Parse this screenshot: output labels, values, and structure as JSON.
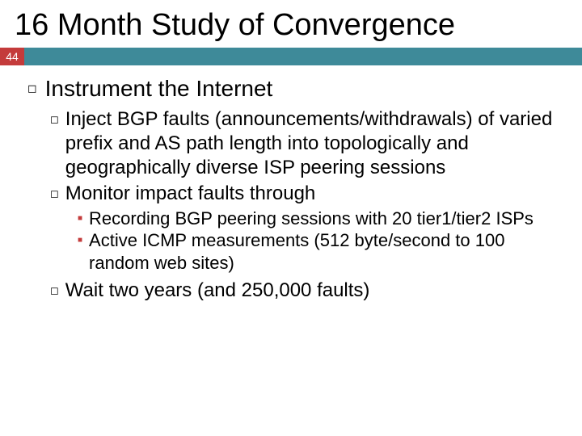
{
  "slide": {
    "title": "16 Month Study of Convergence",
    "page_number": "44",
    "colors": {
      "accent_red": "#c43b3b",
      "accent_teal": "#3e8a99",
      "text": "#000000",
      "background": "#ffffff"
    },
    "typography": {
      "title_fontsize": 38,
      "l1_fontsize": 28,
      "l2_fontsize": 24,
      "l3_fontsize": 22,
      "font_family": "Arial"
    },
    "bullets": {
      "l1_marker": "◻",
      "l2_marker": "◻",
      "l3_marker": "■"
    },
    "content": {
      "l1_0": "Instrument the Internet",
      "l2_0": "Inject BGP faults (announcements/withdrawals) of varied prefix and AS path length into topologically and geographically diverse ISP peering sessions",
      "l2_1": "Monitor impact faults through",
      "l3_0": "Recording BGP peering sessions with 20 tier1/tier2 ISPs",
      "l3_1": "Active ICMP measurements (512 byte/second to 100 random web sites)",
      "l2_2": "Wait two years (and 250,000 faults)"
    }
  }
}
